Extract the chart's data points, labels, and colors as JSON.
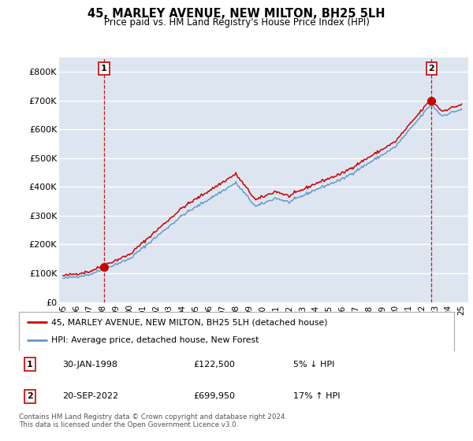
{
  "title": "45, MARLEY AVENUE, NEW MILTON, BH25 5LH",
  "subtitle": "Price paid vs. HM Land Registry's House Price Index (HPI)",
  "ylim": [
    0,
    850000
  ],
  "yticks": [
    0,
    100000,
    200000,
    300000,
    400000,
    500000,
    600000,
    700000,
    800000
  ],
  "ytick_labels": [
    "£0",
    "£100K",
    "£200K",
    "£300K",
    "£400K",
    "£500K",
    "£600K",
    "£700K",
    "£800K"
  ],
  "bg_color": "#dde6f0",
  "sale1_date": 1998.08,
  "sale1_price": 122500,
  "sale2_date": 2022.72,
  "sale2_price": 699950,
  "legend_line1": "45, MARLEY AVENUE, NEW MILTON, BH25 5LH (detached house)",
  "legend_line2": "HPI: Average price, detached house, New Forest",
  "table": [
    {
      "num": "1",
      "date": "30-JAN-1998",
      "price": "£122,500",
      "pct": "5% ↓ HPI"
    },
    {
      "num": "2",
      "date": "20-SEP-2022",
      "price": "£699,950",
      "pct": "17% ↑ HPI"
    }
  ],
  "footnote": "Contains HM Land Registry data © Crown copyright and database right 2024.\nThis data is licensed under the Open Government Licence v3.0.",
  "sale_color": "#cc0000",
  "hpi_color": "#6699cc",
  "dashed_color": "#cc0000",
  "xlim_left": 1994.7,
  "xlim_right": 2025.5
}
